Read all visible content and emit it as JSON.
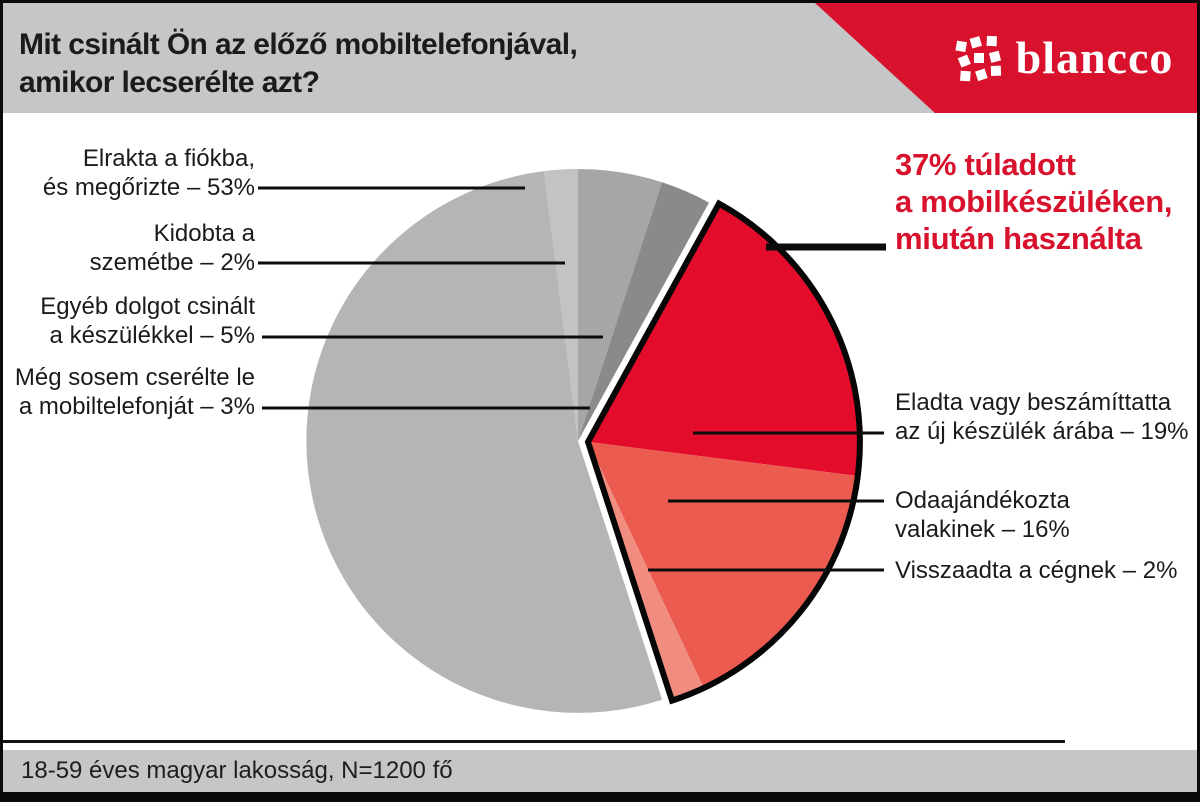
{
  "header": {
    "title": "Mit csinált Ön az előző mobiltelefonjával,\namikor lecserélte azt?",
    "brand": {
      "name": "blancco",
      "color": "#d8112c"
    }
  },
  "callout": {
    "text": "37% túladott\na mobilkészüléken,\nmiután használta",
    "color": "#d8112c"
  },
  "labels": {
    "left": [
      {
        "text": "Elrakta a fiókba,\nés megőrizte – 53%"
      },
      {
        "text": "Kidobta a\nszemétbe – 2%"
      },
      {
        "text": "Egyéb dolgot csinált\na készülékkel – 5%"
      },
      {
        "text": "Még sosem cserélte le\na mobiltelefonját – 3%"
      }
    ],
    "right": [
      {
        "text": "Eladta  vagy beszámíttatta\naz új készülék árába – 19%"
      },
      {
        "text": "Odaajándékozta\nvalakinek – 16%"
      },
      {
        "text": "Visszaadta a cégnek – 2%"
      }
    ]
  },
  "footer": {
    "text": "18-59 éves magyar lakosság, N=1200 fő"
  },
  "chart_data": {
    "type": "pie",
    "title": "Mit csinált Ön az előző mobiltelefonjával, amikor lecserélte azt?",
    "start_angle_deg": -7.2,
    "clockwise": true,
    "slices": [
      {
        "label": "Kidobta a szemétbe",
        "value": 2,
        "color": "#c3c3c3"
      },
      {
        "label": "Egyéb dolgot csinált a készülékkel",
        "value": 5,
        "color": "#a6a6a6"
      },
      {
        "label": "Még sosem cserélte le a mobiltelefonját",
        "value": 3,
        "color": "#8a8a8a"
      },
      {
        "label": "Eladta vagy beszámíttatta az új készülék árába",
        "value": 19,
        "color": "#e30c2b",
        "highlighted": true
      },
      {
        "label": "Odaajándékozta valakinek",
        "value": 16,
        "color": "#eb5b50",
        "highlighted": true
      },
      {
        "label": "Visszaadta a cégnek",
        "value": 2,
        "color": "#f18d80",
        "highlighted": true
      },
      {
        "label": "Elrakta a fiókba, és megőrizte",
        "value": 53,
        "color": "#b5b5b5"
      }
    ],
    "highlight_total": "37%",
    "highlight_note": "37% túladott a mobilkészüléken, miután használta",
    "sample_note": "18-59 éves magyar lakosság, N=1200 fő"
  }
}
